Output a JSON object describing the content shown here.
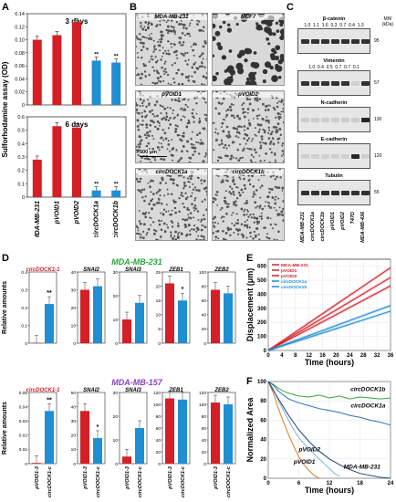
{
  "panel_labels": {
    "A": "A",
    "B": "B",
    "C": "C",
    "D": "D",
    "E": "E",
    "F": "F"
  },
  "panelA": {
    "ylabel": "Sulforhodamine assay (OD)",
    "categories": [
      "MDA-MB-231",
      "pVOID1",
      "pVOID2",
      "circDOCK1a",
      "circDOCK1b"
    ],
    "top": {
      "title": "3 days",
      "ylim": [
        0,
        0.14
      ],
      "ticks": [
        "0",
        "0.02",
        "0.04",
        "0.06",
        "0.08",
        "0.10",
        "0.12",
        "0.14"
      ],
      "values": [
        0.1,
        0.107,
        0.127,
        0.068,
        0.065
      ],
      "stars": [
        "",
        "",
        "",
        "**",
        "**"
      ]
    },
    "bottom": {
      "title": "6 days",
      "ylim": [
        0,
        0.6
      ],
      "ticks": [
        "0",
        "0.1",
        "0.2",
        "0.3",
        "0.4",
        "0.5",
        "0.6"
      ],
      "values": [
        0.28,
        0.53,
        0.52,
        0.05,
        0.05
      ],
      "stars": [
        "",
        "",
        "",
        "**",
        "**"
      ]
    },
    "colors": [
      "#d41f26",
      "#d41f26",
      "#d41f26",
      "#1f8fd3",
      "#1f8fd3"
    ]
  },
  "panelB": {
    "images": [
      {
        "label": "MDA-MB-231"
      },
      {
        "label": "MCF7"
      },
      {
        "label": "pVOID1"
      },
      {
        "label": "pVOID2"
      },
      {
        "label": "circDOCK1a"
      },
      {
        "label": "circDOCK1b"
      }
    ],
    "scalebar": "500 μm"
  },
  "panelC": {
    "mw_label": "MW (kDa)",
    "blots": [
      {
        "title": "β-catenin",
        "values": "1.0  1.1  1.6  0.3  0.7  0.4  1.3",
        "mw": "95"
      },
      {
        "title": "Vimentin",
        "values": "1.0  0.4  0.5  0.7  0.7  0.1",
        "mw": "57"
      },
      {
        "title": "N-cadherin",
        "values": "",
        "mw": "130"
      },
      {
        "title": "E-cadherin",
        "values": "",
        "mw": "120"
      },
      {
        "title": "Tubulin",
        "values": "",
        "mw": "55"
      }
    ],
    "lanes": [
      "MDA-MB-231",
      "circDOCK1a",
      "circDOCK1b",
      "pVOID1",
      "pVOID2",
      "T47D",
      "MDA-MB-436"
    ]
  },
  "panelD": {
    "ylabel": "Relative amounts",
    "xcats": [
      "pVOID1-3",
      "circDOCK1-c"
    ],
    "rows": [
      {
        "cell": "MDA-MB-231",
        "cell_color": "#27a83a",
        "genes": [
          {
            "name": "circDOCK1-1",
            "ylim": [
              0,
              0.4
            ],
            "ticks": [
              "0",
              "0.1",
              "0.2",
              "0.3",
              "0.4"
            ],
            "values": [
              0.002,
              0.22
            ],
            "stars": "**"
          },
          {
            "name": "SNAI2",
            "ylim": [
              0,
              40
            ],
            "ticks": [
              "0",
              "10",
              "20",
              "30",
              "40"
            ],
            "values": [
              30,
              32
            ],
            "stars": ""
          },
          {
            "name": "SNAI3",
            "ylim": [
              0,
              30
            ],
            "ticks": [
              "0",
              "10",
              "20",
              "30"
            ],
            "values": [
              10,
              17
            ],
            "stars": ""
          },
          {
            "name": "ZEB1",
            "ylim": [
              0,
              25
            ],
            "ticks": [
              "0",
              "5",
              "10",
              "15",
              "20",
              "25"
            ],
            "values": [
              21,
              15
            ],
            "stars": "*"
          },
          {
            "name": "ZEB2",
            "ylim": [
              0,
              100
            ],
            "ticks": [
              "0",
              "20",
              "40",
              "60",
              "80",
              "100"
            ],
            "values": [
              75,
              70
            ],
            "stars": ""
          }
        ]
      },
      {
        "cell": "MDA-MB-157",
        "cell_color": "#8a3fc4",
        "genes": [
          {
            "name": "circDOCK1-1",
            "ylim": [
              0,
              0.05
            ],
            "ticks": [
              "0",
              "0.01",
              "0.02",
              "0.03",
              "0.04",
              "0.05"
            ],
            "values": [
              0.0005,
              0.037
            ],
            "stars": "**"
          },
          {
            "name": "SNAI2",
            "ylim": [
              0,
              50
            ],
            "ticks": [
              "0",
              "10",
              "20",
              "30",
              "40",
              "50"
            ],
            "values": [
              37,
              18
            ],
            "stars": "*"
          },
          {
            "name": "SNAI3",
            "ylim": [
              0,
              30
            ],
            "ticks": [
              "0",
              "10",
              "20",
              "30"
            ],
            "values": [
              3,
              15
            ],
            "stars": ""
          },
          {
            "name": "ZEB1",
            "ylim": [
              0,
              120
            ],
            "ticks": [
              "0",
              "20",
              "40",
              "60",
              "80",
              "100",
              "120"
            ],
            "values": [
              110,
              108
            ],
            "stars": ""
          },
          {
            "name": "ZEB2",
            "ylim": [
              0,
              120
            ],
            "ticks": [
              "0",
              "20",
              "40",
              "60",
              "80",
              "100",
              "120"
            ],
            "values": [
              103,
              100
            ],
            "stars": ""
          }
        ]
      }
    ]
  },
  "chart_data": [
    {
      "type": "line",
      "panel": "E",
      "xlabel": "Time (hours)",
      "ylabel": "Displacement (μm)",
      "xticks": [
        "0",
        "4",
        "8",
        "12",
        "16",
        "20",
        "24",
        "28",
        "32",
        "36"
      ],
      "yticks": [
        "0",
        "100",
        "200",
        "300",
        "400",
        "500",
        "600"
      ],
      "xlim": [
        0,
        36
      ],
      "ylim": [
        0,
        650
      ],
      "legend": "top-left",
      "series": [
        {
          "name": "MDA-MB-231",
          "color": "#d41f26",
          "x": [
            0,
            36
          ],
          "y": [
            0,
            520
          ]
        },
        {
          "name": "pVOID1",
          "color": "#d41f26",
          "x": [
            0,
            36
          ],
          "y": [
            0,
            590
          ]
        },
        {
          "name": "pVOID2",
          "color": "#d41f26",
          "x": [
            0,
            36
          ],
          "y": [
            0,
            460
          ]
        },
        {
          "name": "circDOCK1a",
          "color": "#1f8fd3",
          "x": [
            0,
            36
          ],
          "y": [
            0,
            320
          ]
        },
        {
          "name": "circDOCK1b",
          "color": "#1f8fd3",
          "x": [
            0,
            36
          ],
          "y": [
            0,
            280
          ]
        }
      ]
    },
    {
      "type": "line",
      "panel": "F",
      "xlabel": "Time (hours)",
      "ylabel": "Normalized Area",
      "xticks": [
        "0",
        "6",
        "12",
        "18",
        "24"
      ],
      "yticks": [
        "0",
        "20",
        "40",
        "60",
        "80",
        "100"
      ],
      "xlim": [
        0,
        24
      ],
      "ylim": [
        0,
        100
      ],
      "series": [
        {
          "name": "circDOCK1b",
          "color": "#3aa63a",
          "x": [
            0,
            1,
            2,
            3,
            4,
            6,
            8,
            10,
            12,
            14,
            16,
            18,
            20,
            22,
            24
          ],
          "y": [
            100,
            97,
            93,
            90,
            88,
            85,
            84,
            86,
            83,
            85,
            82,
            84,
            83,
            82,
            83
          ]
        },
        {
          "name": "circDOCK1a",
          "color": "#2d6fb5",
          "x": [
            0,
            1,
            2,
            3,
            4,
            6,
            8,
            10,
            12,
            14,
            16,
            18,
            20,
            22,
            24
          ],
          "y": [
            100,
            96,
            90,
            86,
            82,
            78,
            75,
            72,
            70,
            68,
            65,
            63,
            60,
            58,
            55
          ]
        },
        {
          "name": "pVOID2",
          "color": "#7fb2e0",
          "x": [
            0,
            1,
            2,
            3,
            4,
            5,
            6,
            8,
            10,
            12,
            13,
            14
          ],
          "y": [
            100,
            92,
            80,
            70,
            60,
            50,
            42,
            30,
            20,
            10,
            5,
            2
          ]
        },
        {
          "name": "pVOID1",
          "color": "#e07a1f",
          "x": [
            0,
            1,
            2,
            3,
            4,
            5,
            6,
            7,
            8,
            9,
            10
          ],
          "y": [
            100,
            88,
            72,
            58,
            45,
            33,
            22,
            14,
            8,
            3,
            0
          ]
        },
        {
          "name": "MDA-MB-231",
          "color": "#1a3f7a",
          "x": [
            0,
            2,
            4,
            6,
            8,
            10,
            12,
            14,
            16,
            18,
            20,
            22,
            24
          ],
          "y": [
            100,
            82,
            65,
            50,
            38,
            28,
            20,
            14,
            9,
            5,
            3,
            1,
            0
          ]
        }
      ]
    }
  ]
}
